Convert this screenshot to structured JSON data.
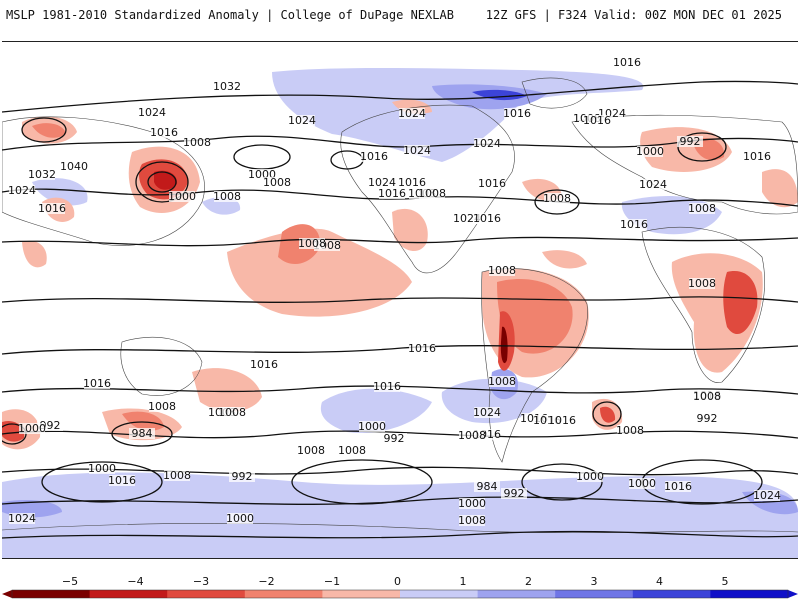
{
  "header": {
    "title": "MSLP 1981-2010 Standardized Anomaly | College of DuPage NEXLAB",
    "run_info": "12Z GFS | F324 Valid: 00Z MON DEC 01 2025"
  },
  "colors": {
    "neg5": "#7a0000",
    "neg4": "#c21a1a",
    "neg3": "#e04a3e",
    "neg2": "#f0826e",
    "neg1": "#f8b8a8",
    "zero": "#ffffff",
    "pos1": "#c9ccf6",
    "pos2": "#9ea3ef",
    "pos3": "#6f75e6",
    "pos4": "#3c44d8",
    "pos5": "#1010c8"
  },
  "legend": {
    "ticks": [
      "−5",
      "−4",
      "−3",
      "−2",
      "−1",
      "0",
      "1",
      "2",
      "3",
      "4",
      "5"
    ]
  },
  "isobar_labels": [
    "1032",
    "1024",
    "1016",
    "1008",
    "1040",
    "1032",
    "1024",
    "1016",
    "1000",
    "1008",
    "1024",
    "1016",
    "1000",
    "1008",
    "1024",
    "1016",
    "1016",
    "1008",
    "1024",
    "1016",
    "1024",
    "1016",
    "1008",
    "1024",
    "1024",
    "1016",
    "1008",
    "1024",
    "1008",
    "992",
    "1000",
    "1016",
    "1016",
    "1008",
    "1024",
    "1008",
    "1008",
    "1008",
    "1016",
    "1008",
    "1016",
    "1016",
    "1016",
    "1008",
    "1008",
    "1016",
    "1016",
    "1016",
    "992",
    "1000",
    "984",
    "1008",
    "1000",
    "992",
    "1008",
    "1016",
    "1024",
    "1016",
    "1008",
    "1008",
    "992",
    "1008",
    "1008",
    "1016",
    "1000",
    "1016",
    "1008",
    "992",
    "1000",
    "1000",
    "984",
    "992",
    "1000",
    "1008",
    "1000",
    "1024",
    "1016",
    "1024",
    "1016",
    "1008"
  ]
}
